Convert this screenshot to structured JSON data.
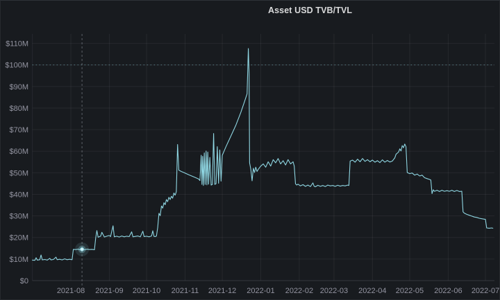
{
  "panel": {
    "title": "Asset USD TVB/TVL"
  },
  "colors": {
    "background": "#181b1f",
    "title_text": "#d8d9da",
    "axis_text": "rgba(204,204,220,0.68)",
    "grid": "rgba(204,204,220,0.08)",
    "zero_line": "rgba(204,204,220,0.16)",
    "series": "#8fd6e2",
    "highlight_point": "#d9f4f8",
    "threshold_line": "rgba(122,182,192,0.55)",
    "annotation_line": "rgba(174,182,194,0.45)"
  },
  "chart_data": {
    "type": "line",
    "title": "Asset USD TVB/TVL",
    "unit": "USD millions",
    "grid": true,
    "legend": "none",
    "ylim": [
      0,
      110
    ],
    "x_unit": "days since 2021-07-01",
    "x_range_days": [
      0,
      372
    ],
    "yticks": [
      {
        "value": 0,
        "label": "$0"
      },
      {
        "value": 10,
        "label": "$10M"
      },
      {
        "value": 20,
        "label": "$20M"
      },
      {
        "value": 30,
        "label": "$30M"
      },
      {
        "value": 40,
        "label": "$40M"
      },
      {
        "value": 50,
        "label": "$50M"
      },
      {
        "value": 60,
        "label": "$60M"
      },
      {
        "value": 70,
        "label": "$70M"
      },
      {
        "value": 80,
        "label": "$80M"
      },
      {
        "value": 90,
        "label": "$90M"
      },
      {
        "value": 100,
        "label": "$100M"
      },
      {
        "value": 110,
        "label": "$110M"
      }
    ],
    "xticks": [
      {
        "day": 31,
        "label": "2021-08"
      },
      {
        "day": 62,
        "label": "2021-09"
      },
      {
        "day": 92,
        "label": "2021-10"
      },
      {
        "day": 123,
        "label": "2021-11"
      },
      {
        "day": 153,
        "label": "2021-12"
      },
      {
        "day": 184,
        "label": "2022-01"
      },
      {
        "day": 215,
        "label": "2022-02"
      },
      {
        "day": 243,
        "label": "2022-03"
      },
      {
        "day": 274,
        "label": "2022-04"
      },
      {
        "day": 304,
        "label": "2022-05"
      },
      {
        "day": 335,
        "label": "2022-06"
      },
      {
        "day": 365,
        "label": "2022-07"
      }
    ],
    "threshold_line": {
      "value": 100,
      "style": "dotted"
    },
    "annotation_vline": {
      "day": 40,
      "approx_date": "2021-08-10",
      "style": "dashed"
    },
    "highlight_point": {
      "day": 40,
      "value": 14.5
    },
    "series": [
      {
        "name": "Asset USD TVB/TVL",
        "points": [
          [
            0,
            9.5
          ],
          [
            2,
            9.4
          ],
          [
            3,
            10.6
          ],
          [
            4,
            9.5
          ],
          [
            6,
            9.7
          ],
          [
            7,
            11.9
          ],
          [
            8,
            9.6
          ],
          [
            10,
            9.8
          ],
          [
            12,
            9.5
          ],
          [
            14,
            10.3
          ],
          [
            15,
            9.6
          ],
          [
            17,
            9.8
          ],
          [
            19,
            10.9
          ],
          [
            20,
            9.7
          ],
          [
            22,
            9.9
          ],
          [
            24,
            9.6
          ],
          [
            26,
            10.1
          ],
          [
            28,
            9.7
          ],
          [
            30,
            9.9
          ],
          [
            32,
            9.7
          ],
          [
            33,
            14.5
          ],
          [
            35,
            14.4
          ],
          [
            37,
            14.6
          ],
          [
            38,
            14.3
          ],
          [
            40,
            14.5
          ],
          [
            42,
            14.3
          ],
          [
            44,
            14.6
          ],
          [
            46,
            14.4
          ],
          [
            48,
            14.5
          ],
          [
            50,
            14.3
          ],
          [
            51,
            19.8
          ],
          [
            52,
            23.2
          ],
          [
            53,
            20.1
          ],
          [
            55,
            20.6
          ],
          [
            56,
            22.4
          ],
          [
            58,
            20.2
          ],
          [
            60,
            20.6
          ],
          [
            62,
            20.9
          ],
          [
            63,
            20.4
          ],
          [
            65,
            25.4
          ],
          [
            66,
            20.3
          ],
          [
            68,
            20.6
          ],
          [
            70,
            20.2
          ],
          [
            72,
            20.7
          ],
          [
            74,
            20.3
          ],
          [
            76,
            20.6
          ],
          [
            78,
            20.4
          ],
          [
            80,
            22.6
          ],
          [
            81,
            20.3
          ],
          [
            83,
            20.5
          ],
          [
            85,
            20.7
          ],
          [
            87,
            20.3
          ],
          [
            89,
            22.9
          ],
          [
            90,
            20.4
          ],
          [
            92,
            20.6
          ],
          [
            94,
            20.3
          ],
          [
            96,
            20.7
          ],
          [
            97,
            23.1
          ],
          [
            98,
            20.5
          ],
          [
            99,
            20.4
          ],
          [
            100,
            20.7
          ],
          [
            101,
            24.6
          ],
          [
            102,
            31.2
          ],
          [
            103,
            30.1
          ],
          [
            104,
            34.6
          ],
          [
            105,
            33.6
          ],
          [
            106,
            36.1
          ],
          [
            107,
            35.2
          ],
          [
            108,
            37.6
          ],
          [
            109,
            36.6
          ],
          [
            110,
            38.6
          ],
          [
            111,
            37.6
          ],
          [
            112,
            39.1
          ],
          [
            113,
            38.2
          ],
          [
            114,
            40.6
          ],
          [
            115,
            39.6
          ],
          [
            116,
            41.2
          ],
          [
            117,
            63.1
          ],
          [
            118,
            51.2
          ],
          [
            120,
            50.6
          ],
          [
            122,
            50.1
          ],
          [
            124,
            49.6
          ],
          [
            126,
            49.1
          ],
          [
            128,
            48.6
          ],
          [
            130,
            48.1
          ],
          [
            132,
            47.6
          ],
          [
            134,
            47.1
          ],
          [
            135,
            46.4
          ],
          [
            136,
            58.1
          ],
          [
            136.6,
            44.6
          ],
          [
            137.2,
            57.6
          ],
          [
            137.8,
            44.1
          ],
          [
            138.5,
            59.2
          ],
          [
            139.2,
            44.6
          ],
          [
            140,
            60.1
          ],
          [
            140.6,
            44.4
          ],
          [
            141.3,
            59.6
          ],
          [
            142,
            44.7
          ],
          [
            143,
            57.1
          ],
          [
            144,
            44.3
          ],
          [
            145,
            44.6
          ],
          [
            146,
            68.2
          ],
          [
            147,
            44.6
          ],
          [
            148,
            44.9
          ],
          [
            149,
            62.1
          ],
          [
            150,
            45.1
          ],
          [
            151,
            60.6
          ],
          [
            152,
            46.1
          ],
          [
            153,
            58.1
          ],
          [
            156,
            62.1
          ],
          [
            160,
            67.1
          ],
          [
            164,
            72.1
          ],
          [
            168,
            78.1
          ],
          [
            171,
            83.1
          ],
          [
            173,
            86.6
          ],
          [
            174,
            107.6
          ],
          [
            174.6,
            96.1
          ],
          [
            175,
            54.6
          ],
          [
            176,
            51.6
          ],
          [
            177,
            46.3
          ],
          [
            178,
            52.1
          ],
          [
            179,
            50.1
          ],
          [
            180,
            52.6
          ],
          [
            181,
            50.6
          ],
          [
            182,
            51.6
          ],
          [
            184,
            53.1
          ],
          [
            186,
            54.1
          ],
          [
            188,
            52.6
          ],
          [
            190,
            55.1
          ],
          [
            192,
            53.1
          ],
          [
            194,
            56.1
          ],
          [
            196,
            54.6
          ],
          [
            198,
            56.6
          ],
          [
            200,
            54.1
          ],
          [
            202,
            55.6
          ],
          [
            204,
            53.6
          ],
          [
            206,
            56.1
          ],
          [
            208,
            54.1
          ],
          [
            210,
            55.1
          ],
          [
            211,
            53.1
          ],
          [
            212,
            44.9
          ],
          [
            213,
            44.3
          ],
          [
            214,
            44.7
          ],
          [
            216,
            43.9
          ],
          [
            218,
            44.5
          ],
          [
            220,
            43.7
          ],
          [
            222,
            44.3
          ],
          [
            224,
            43.6
          ],
          [
            226,
            45.3
          ],
          [
            227,
            43.8
          ],
          [
            228,
            43.5
          ],
          [
            230,
            44.2
          ],
          [
            232,
            43.7
          ],
          [
            234,
            44.1
          ],
          [
            236,
            43.6
          ],
          [
            238,
            44.3
          ],
          [
            240,
            43.9
          ],
          [
            242,
            44.1
          ],
          [
            244,
            43.7
          ],
          [
            246,
            44.2
          ],
          [
            248,
            43.8
          ],
          [
            250,
            44.1
          ],
          [
            252,
            43.9
          ],
          [
            254,
            44.3
          ],
          [
            255,
            44.1
          ],
          [
            256,
            55.4
          ],
          [
            258,
            55.9
          ],
          [
            260,
            54.9
          ],
          [
            262,
            56.3
          ],
          [
            264,
            55.1
          ],
          [
            266,
            56.6
          ],
          [
            268,
            55.3
          ],
          [
            270,
            56.1
          ],
          [
            272,
            55.1
          ],
          [
            274,
            55.9
          ],
          [
            276,
            54.9
          ],
          [
            278,
            55.6
          ],
          [
            280,
            54.7
          ],
          [
            282,
            56.0
          ],
          [
            284,
            54.9
          ],
          [
            286,
            55.7
          ],
          [
            288,
            55.0
          ],
          [
            290,
            55.4
          ],
          [
            292,
            56.9
          ],
          [
            293,
            58.6
          ],
          [
            295,
            59.6
          ],
          [
            296,
            61.1
          ],
          [
            297,
            60.1
          ],
          [
            298,
            62.6
          ],
          [
            299,
            61.6
          ],
          [
            300,
            63.3
          ],
          [
            301,
            62.1
          ],
          [
            302,
            50.1
          ],
          [
            304,
            49.6
          ],
          [
            306,
            49.9
          ],
          [
            308,
            48.9
          ],
          [
            310,
            49.4
          ],
          [
            312,
            48.5
          ],
          [
            314,
            48.9
          ],
          [
            316,
            47.7
          ],
          [
            318,
            47.3
          ],
          [
            320,
            46.9
          ],
          [
            321,
            46.6
          ],
          [
            322,
            40.3
          ],
          [
            323,
            42.1
          ],
          [
            324,
            41.4
          ],
          [
            326,
            41.9
          ],
          [
            328,
            41.3
          ],
          [
            330,
            41.9
          ],
          [
            332,
            41.4
          ],
          [
            334,
            41.7
          ],
          [
            336,
            41.4
          ],
          [
            338,
            41.9
          ],
          [
            340,
            41.3
          ],
          [
            342,
            41.8
          ],
          [
            344,
            41.3
          ],
          [
            346,
            41.4
          ],
          [
            347,
            31.9
          ],
          [
            348,
            31.3
          ],
          [
            350,
            30.7
          ],
          [
            352,
            30.3
          ],
          [
            354,
            29.9
          ],
          [
            356,
            29.5
          ],
          [
            358,
            29.3
          ],
          [
            360,
            28.9
          ],
          [
            362,
            28.7
          ],
          [
            364,
            28.5
          ],
          [
            365,
            28.4
          ],
          [
            366,
            24.4
          ],
          [
            368,
            24.3
          ],
          [
            370,
            24.4
          ],
          [
            371,
            24.3
          ]
        ]
      }
    ]
  }
}
